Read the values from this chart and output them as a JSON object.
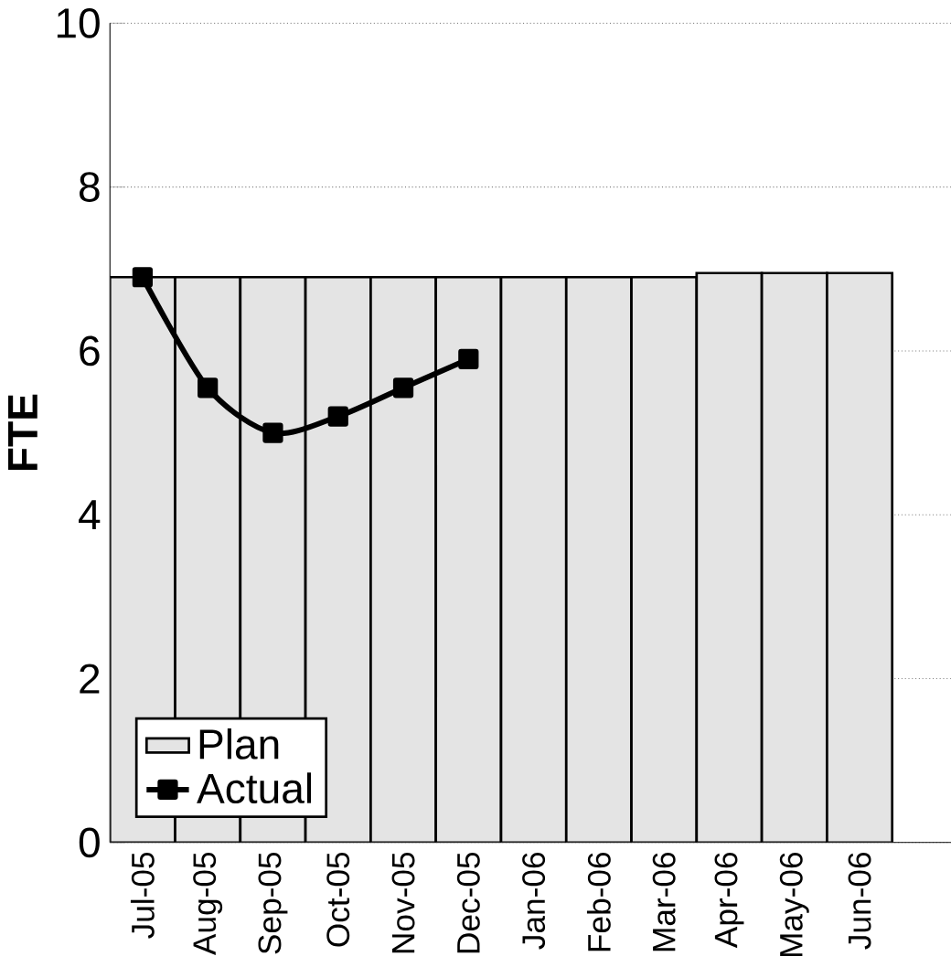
{
  "chart_data": {
    "type": "bar",
    "ylabel": "FTE",
    "categories": [
      "Jul-05",
      "Aug-05",
      "Sep-05",
      "Oct-05",
      "Nov-05",
      "Dec-05",
      "Jan-06",
      "Feb-06",
      "Mar-06",
      "Apr-06",
      "May-06",
      "Jun-06"
    ],
    "series": [
      {
        "name": "Plan",
        "color": "#e4e4e4",
        "values": [
          6.9,
          6.9,
          6.9,
          6.9,
          6.9,
          6.9,
          6.9,
          6.9,
          6.9,
          6.95,
          6.95,
          6.95
        ]
      },
      {
        "name": "Actual",
        "type": "line",
        "color": "#000000",
        "marker": "square",
        "values": [
          6.9,
          5.55,
          5.0,
          5.2,
          5.55,
          5.9,
          null,
          null,
          null,
          null,
          null,
          null
        ]
      }
    ],
    "ylim": [
      0,
      10
    ],
    "yticks": [
      0,
      2,
      4,
      6,
      8,
      10
    ],
    "grid": "y",
    "legend": "bottom left"
  }
}
